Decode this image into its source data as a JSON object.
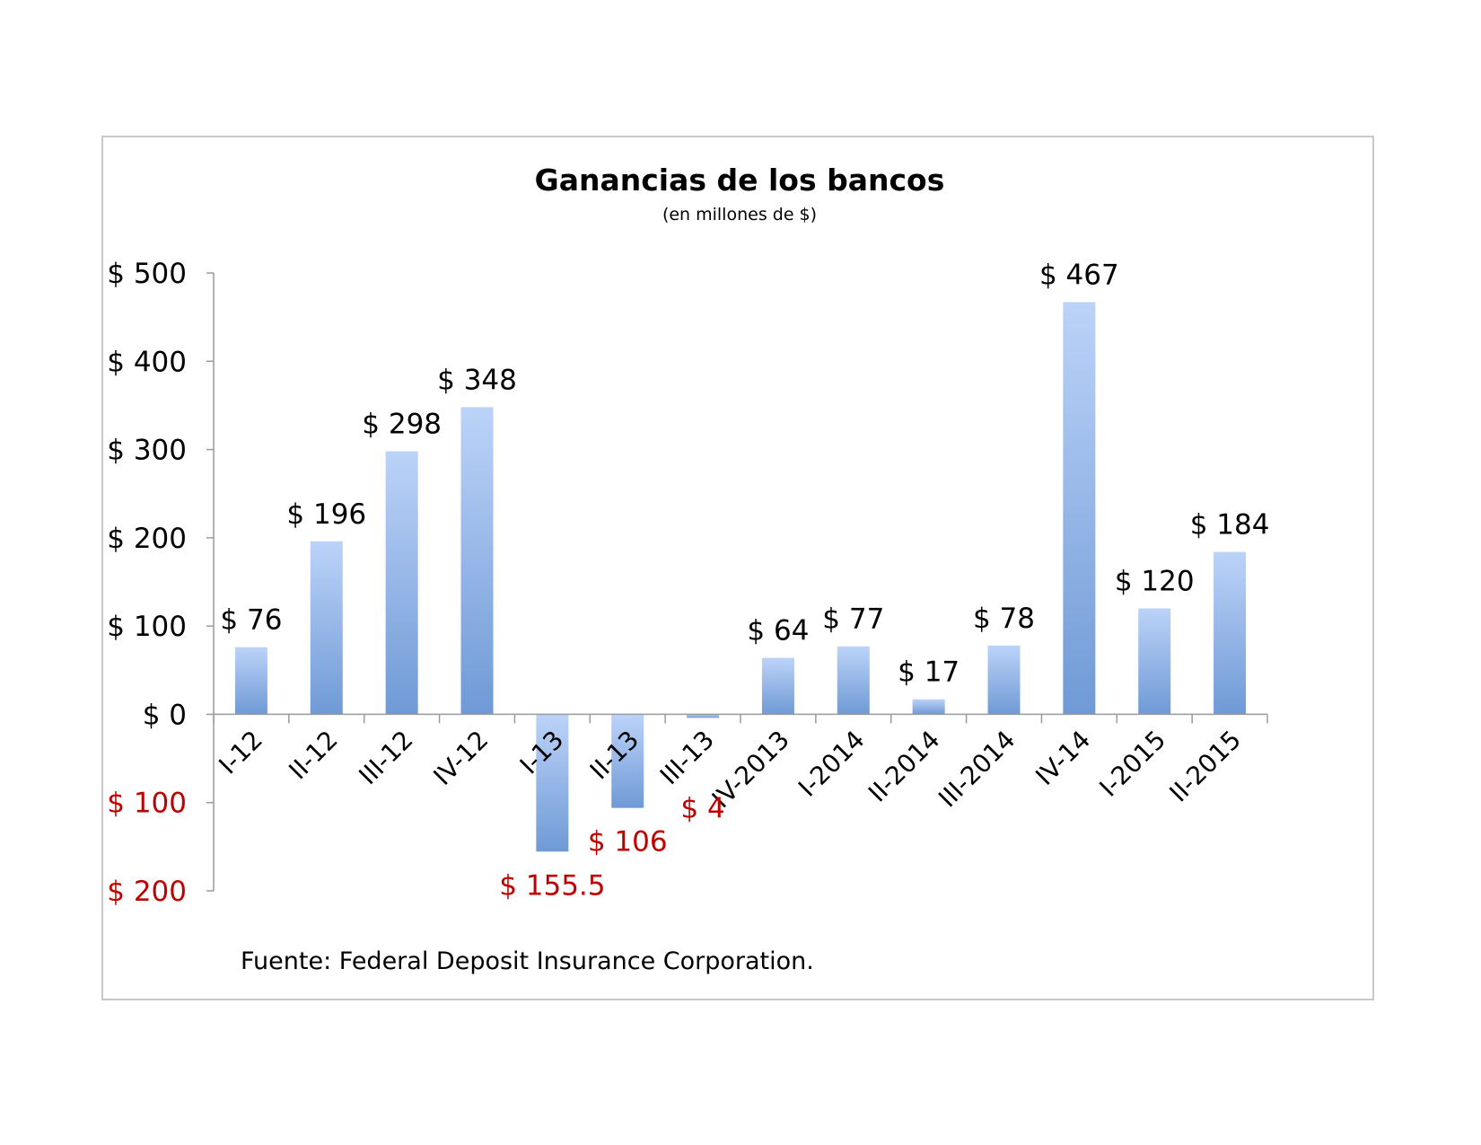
{
  "chart_data": {
    "type": "bar",
    "title": "Ganancias de los bancos",
    "subtitle": "(en millones de $)",
    "source": "Fuente: Federal Deposit Insurance Corporation.",
    "categories": [
      "I-12",
      "II-12",
      "III-12",
      "IV-12",
      "I-13",
      "II-13",
      "III-13",
      "IV-2013",
      "I-2014",
      "II-2014",
      "III-2014",
      "IV-14",
      "I-2015",
      "II-2015"
    ],
    "values": [
      76,
      196,
      298,
      348,
      -155.5,
      -106,
      -4,
      64,
      77,
      17,
      78,
      467,
      120,
      184
    ],
    "data_labels": [
      "$ 76",
      "$ 196",
      "$ 298",
      "$ 348",
      "$ 155.5",
      "$ 106",
      "$ 4",
      "$ 64",
      "$ 77",
      "$ 17",
      "$ 78",
      "$ 467",
      "$ 120",
      "$ 184"
    ],
    "ylim": [
      -200,
      500
    ],
    "y_ticks": [
      500,
      400,
      300,
      200,
      100,
      0,
      -100,
      -200
    ],
    "y_tick_labels": [
      "$ 500",
      "$ 400",
      "$ 300",
      "$ 200",
      "$ 100",
      "$ 0",
      "$ 100",
      "$ 200"
    ],
    "xlabel": "",
    "ylabel": "",
    "grid": false,
    "colors": {
      "bar_top": "#bcd3f8",
      "bar_bottom": "#6f9ad6",
      "negative_text": "#c00000",
      "positive_text": "#000000",
      "axis": "#9a9a9a"
    }
  }
}
